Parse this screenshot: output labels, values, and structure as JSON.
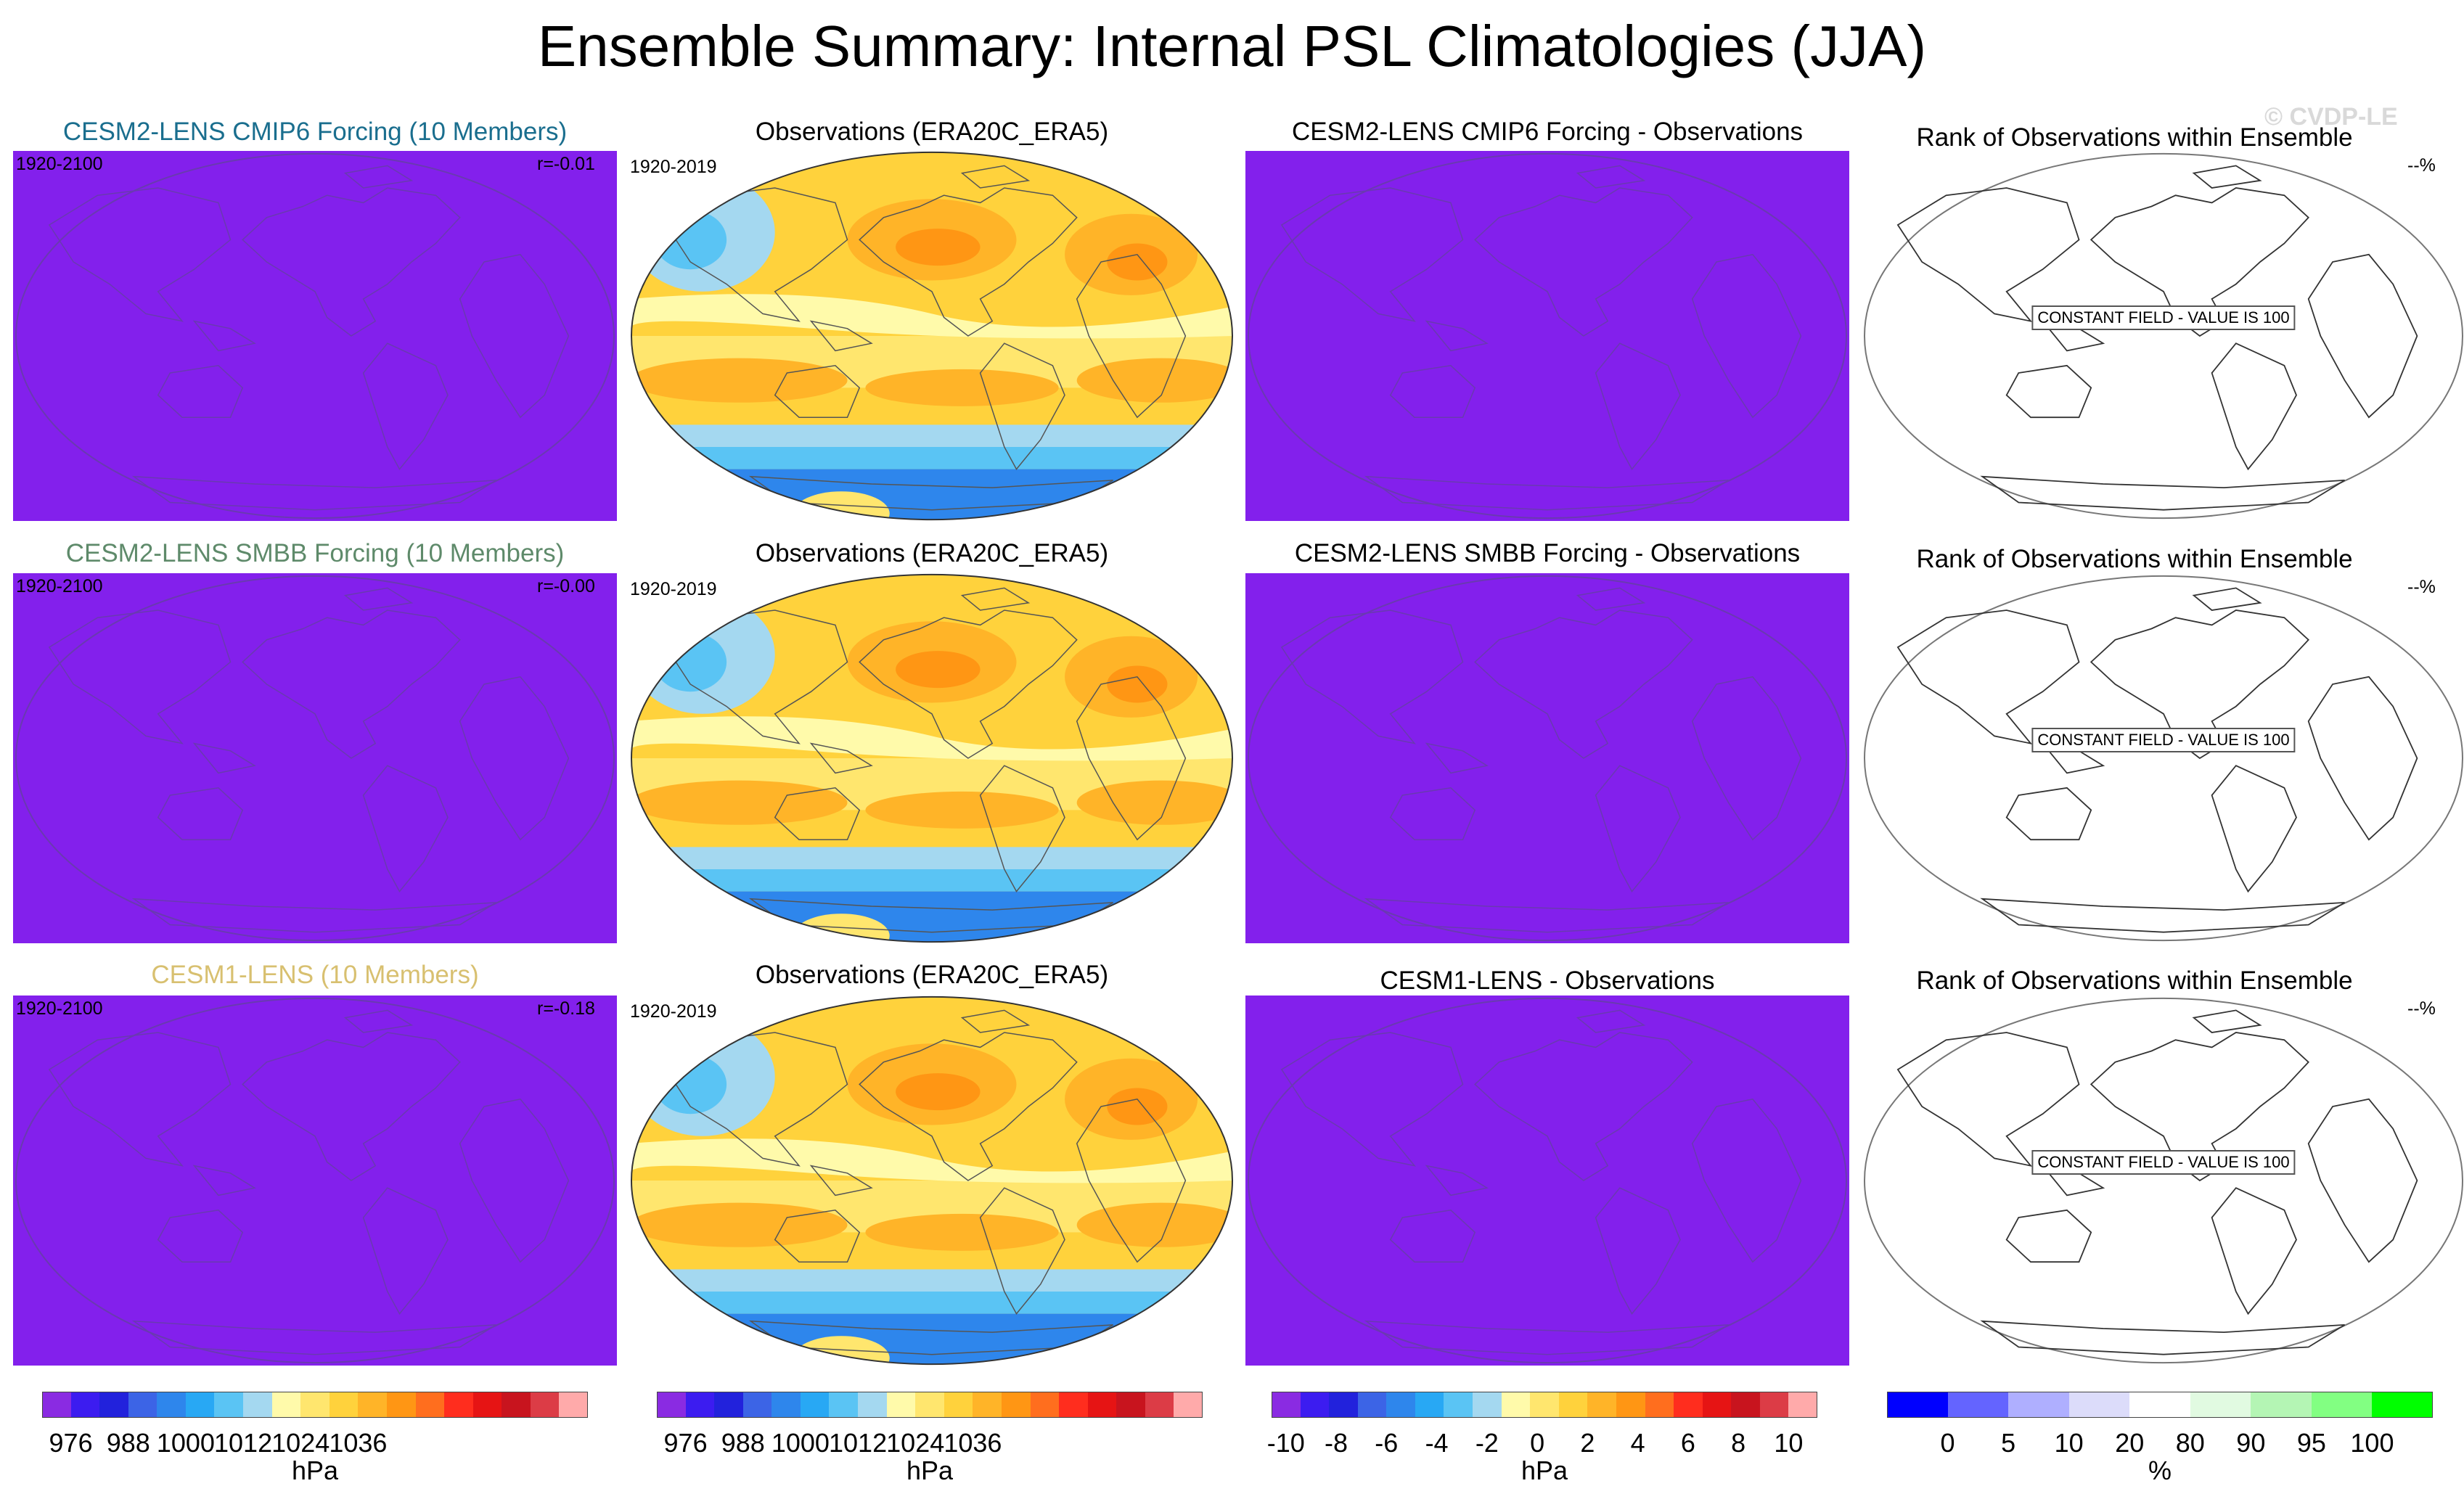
{
  "title": "Ensemble Summary: Internal PSL Climatologies (JJA)",
  "watermark": "© CVDP-LE",
  "rows": [
    {
      "model": {
        "title": "CESM2-LENS CMIP6 Forcing (10 Members)",
        "color": "#1a6e8e",
        "years": "1920-2100",
        "r": "r=-0.01"
      },
      "obs": {
        "title": "Observations (ERA20C_ERA5)",
        "years": "1920-2019"
      },
      "diff": {
        "title": "CESM2-LENS CMIP6 Forcing - Observations"
      },
      "rank": {
        "title": "Rank of Observations within Ensemble",
        "pct": "--%",
        "constant": "CONSTANT FIELD - VALUE IS 100"
      }
    },
    {
      "model": {
        "title": "CESM2-LENS SMBB Forcing (10 Members)",
        "color": "#5e8a6a",
        "years": "1920-2100",
        "r": "r=-0.00"
      },
      "obs": {
        "title": "Observations (ERA20C_ERA5)",
        "years": "1920-2019"
      },
      "diff": {
        "title": "CESM2-LENS SMBB Forcing - Observations"
      },
      "rank": {
        "title": "Rank of Observations within Ensemble",
        "pct": "--%",
        "constant": "CONSTANT FIELD - VALUE IS 100"
      }
    },
    {
      "model": {
        "title": "CESM1-LENS (10 Members)",
        "color": "#d8c070",
        "years": "1920-2100",
        "r": "r=-0.18"
      },
      "obs": {
        "title": "Observations (ERA20C_ERA5)",
        "years": "1920-2019"
      },
      "diff": {
        "title": "CESM1-LENS - Observations"
      },
      "rank": {
        "title": "Rank of Observations within Ensemble",
        "pct": "--%",
        "constant": "CONSTANT FIELD - VALUE IS 100"
      }
    }
  ],
  "colorbars": {
    "psl": {
      "unit": "hPa",
      "colors": [
        "#8a2be2",
        "#3c1cf0",
        "#2222dc",
        "#3c64e6",
        "#2e86ec",
        "#28a8f4",
        "#5ac4f4",
        "#a4d8f0",
        "#fffaaa",
        "#ffe66e",
        "#ffd23c",
        "#ffb428",
        "#ff9614",
        "#ff6e1e",
        "#ff2d1e",
        "#e61414",
        "#c8141e",
        "#dc3c46",
        "#ffaaaa"
      ],
      "ticks": [
        "976",
        "988",
        "1000",
        "1012",
        "1024",
        "1036"
      ]
    },
    "diff": {
      "unit": "hPa",
      "colors": [
        "#8a2be2",
        "#3c1cf0",
        "#2222dc",
        "#3c64e6",
        "#2e86ec",
        "#28a8f4",
        "#5ac4f4",
        "#a4d8f0",
        "#fffaaa",
        "#ffe66e",
        "#ffd23c",
        "#ffb428",
        "#ff9614",
        "#ff6e1e",
        "#ff2d1e",
        "#e61414",
        "#c8141e",
        "#dc3c46",
        "#ffaaaa"
      ],
      "ticks": [
        "-10",
        "-8",
        "-6",
        "-4",
        "-2",
        "0",
        "2",
        "4",
        "6",
        "8",
        "10"
      ]
    },
    "rank": {
      "unit": "%",
      "colors": [
        "#0000ff",
        "#6464ff",
        "#afafff",
        "#dcdcfa",
        "#ffffff",
        "#e1fae1",
        "#b4f5b4",
        "#82ff82",
        "#00ff00"
      ],
      "ticks": [
        "0",
        "5",
        "10",
        "20",
        "80",
        "90",
        "95",
        "100"
      ]
    }
  }
}
